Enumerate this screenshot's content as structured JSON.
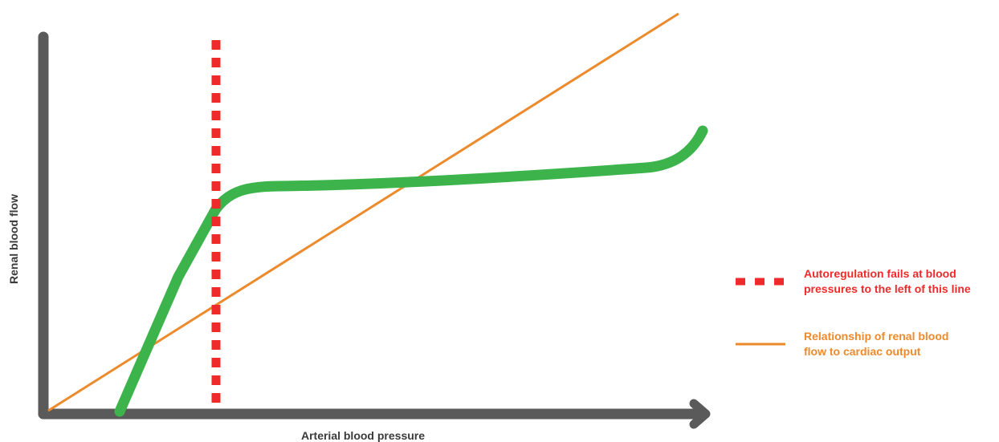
{
  "diagram": {
    "x_axis_label": "Arterial blood pressure",
    "y_axis_label": "Renal blood flow",
    "legend": [
      {
        "symbol": "dashed-line",
        "line1": "Autoregulation fails at blood",
        "line2": "pressures to the left of this line",
        "color": "#ee2a2a"
      },
      {
        "symbol": "solid-line",
        "line1": "Relationship of renal blood",
        "line2": "flow to cardiac output",
        "color": "#ec8a2c"
      }
    ],
    "colors": {
      "axis": "#5a5a5a",
      "autoregulation_curve": "#3cb44b",
      "threshold_line": "#ee2a2a",
      "cardiac_output_line": "#ec8a2c"
    }
  }
}
